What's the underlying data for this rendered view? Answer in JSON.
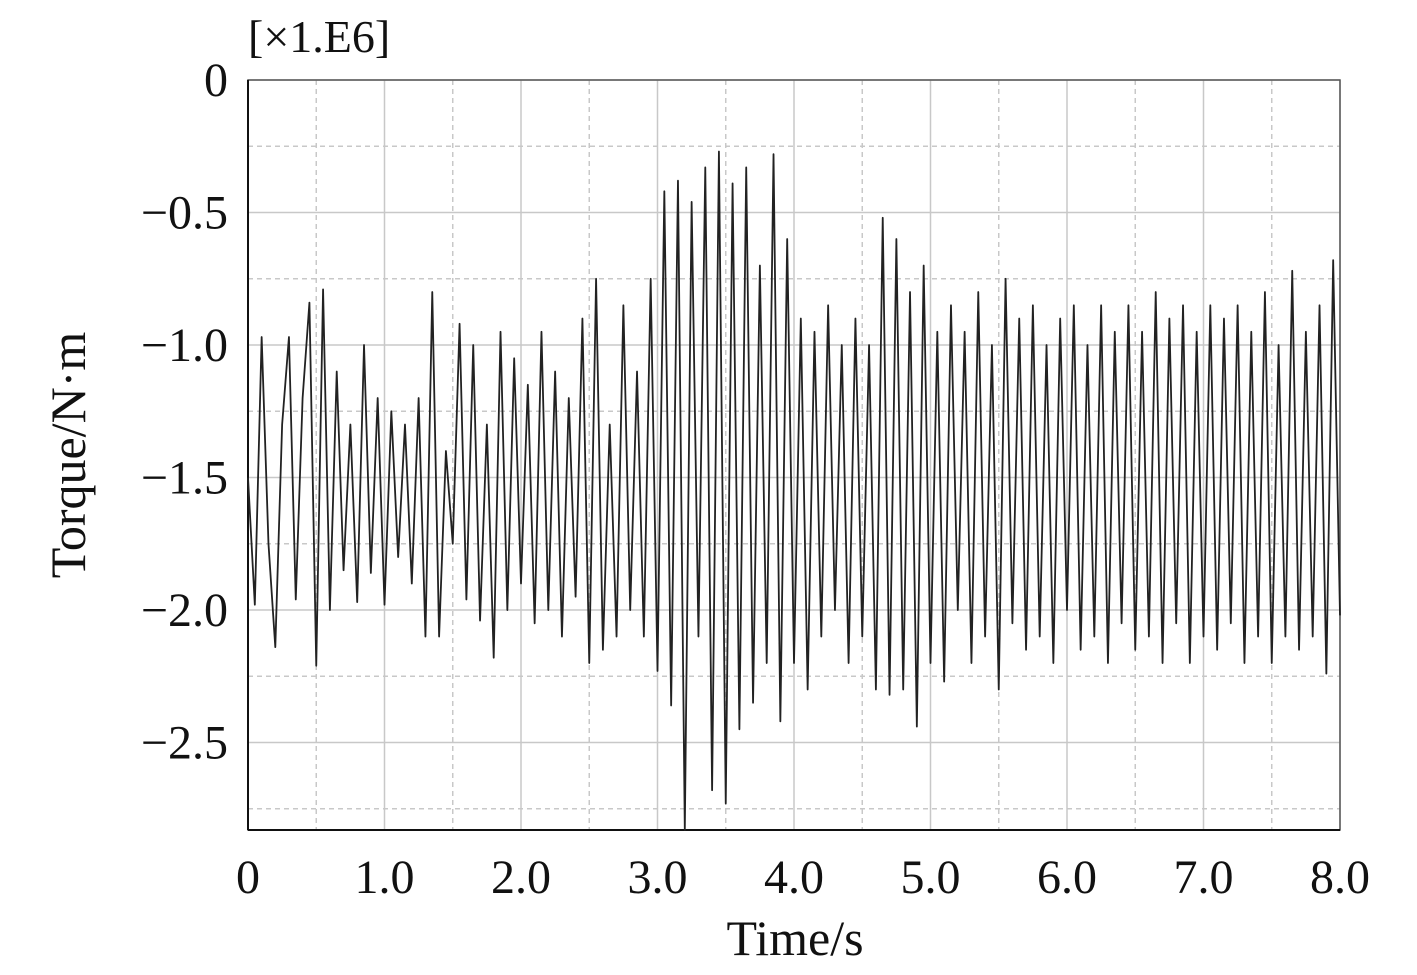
{
  "chart_data": {
    "type": "line",
    "unit_label": "[×1.E6]",
    "ylabel": "Torque/N·m",
    "xlabel": "Time/s",
    "xlim": [
      0,
      8
    ],
    "ylim": [
      -2.83,
      0
    ],
    "xticks": [
      0,
      {
        "value": 1,
        "label": "1.0"
      },
      {
        "value": 2,
        "label": "2.0"
      },
      {
        "value": 3,
        "label": "3.0"
      },
      {
        "value": 4,
        "label": "4.0"
      },
      {
        "value": 5,
        "label": "5.0"
      },
      {
        "value": 6,
        "label": "6.0"
      },
      {
        "value": 7,
        "label": "7.0"
      },
      {
        "value": 8,
        "label": "8.0"
      }
    ],
    "yticks": [
      0,
      {
        "value": -0.5,
        "label": "−0.5"
      },
      {
        "value": -1,
        "label": "−1.0"
      },
      {
        "value": -1.5,
        "label": "−1.5"
      },
      {
        "value": -2,
        "label": "−2.0"
      },
      {
        "value": -2.5,
        "label": "−2.5"
      }
    ],
    "xminorticks": [
      0.5,
      1.5,
      2.5,
      3.5,
      4.5,
      5.5,
      6.5,
      7.5
    ],
    "yminorticks": [
      -0.25,
      -0.75,
      -1.25,
      -1.75,
      -2.25,
      -2.75
    ],
    "grid": true,
    "x": [
      0,
      0.05,
      0.1,
      0.15,
      0.2,
      0.25,
      0.3,
      0.35,
      0.4,
      0.45,
      0.5,
      0.55,
      0.6,
      0.65,
      0.7,
      0.75,
      0.8,
      0.85,
      0.9,
      0.95,
      1,
      1.05,
      1.1,
      1.15,
      1.2,
      1.25,
      1.3,
      1.35,
      1.4,
      1.45,
      1.5,
      1.55,
      1.6,
      1.65,
      1.7,
      1.75,
      1.8,
      1.85,
      1.9,
      1.95,
      2,
      2.05,
      2.1,
      2.15,
      2.2,
      2.25,
      2.3,
      2.35,
      2.4,
      2.45,
      2.5,
      2.55,
      2.6,
      2.65,
      2.7,
      2.75,
      2.8,
      2.85,
      2.9,
      2.95,
      3,
      3.05,
      3.1,
      3.15,
      3.2,
      3.25,
      3.3,
      3.35,
      3.4,
      3.45,
      3.5,
      3.55,
      3.6,
      3.65,
      3.7,
      3.75,
      3.8,
      3.85,
      3.9,
      3.95,
      4,
      4.05,
      4.1,
      4.15,
      4.2,
      4.25,
      4.3,
      4.35,
      4.4,
      4.45,
      4.5,
      4.55,
      4.6,
      4.65,
      4.7,
      4.75,
      4.8,
      4.85,
      4.9,
      4.95,
      5,
      5.05,
      5.1,
      5.15,
      5.2,
      5.25,
      5.3,
      5.35,
      5.4,
      5.45,
      5.5,
      5.55,
      5.6,
      5.65,
      5.7,
      5.75,
      5.8,
      5.85,
      5.9,
      5.95,
      6,
      6.05,
      6.1,
      6.15,
      6.2,
      6.25,
      6.3,
      6.35,
      6.4,
      6.45,
      6.5,
      6.55,
      6.6,
      6.65,
      6.7,
      6.75,
      6.8,
      6.85,
      6.9,
      6.95,
      7,
      7.05,
      7.1,
      7.15,
      7.2,
      7.25,
      7.3,
      7.35,
      7.4,
      7.45,
      7.5,
      7.55,
      7.6,
      7.65,
      7.7,
      7.75,
      7.8,
      7.85,
      7.9,
      7.95,
      8
    ],
    "series": [
      {
        "color": "#222222",
        "values": [
          -1.5,
          -1.98,
          -0.97,
          -1.75,
          -2.14,
          -1.3,
          -0.97,
          -1.96,
          -1.2,
          -0.84,
          -2.21,
          -0.79,
          -2.0,
          -1.1,
          -1.85,
          -1.3,
          -1.97,
          -1.0,
          -1.86,
          -1.2,
          -1.98,
          -1.25,
          -1.8,
          -1.3,
          -1.9,
          -1.2,
          -2.1,
          -0.8,
          -2.1,
          -1.4,
          -1.75,
          -0.92,
          -1.96,
          -1.0,
          -2.04,
          -1.3,
          -2.18,
          -0.95,
          -2.0,
          -1.05,
          -1.9,
          -1.15,
          -2.05,
          -0.95,
          -2.0,
          -1.1,
          -2.1,
          -1.2,
          -1.95,
          -0.9,
          -2.2,
          -0.75,
          -2.15,
          -1.3,
          -2.1,
          -0.85,
          -2.0,
          -1.1,
          -2.1,
          -0.75,
          -2.23,
          -0.42,
          -2.36,
          -0.38,
          -2.83,
          -0.46,
          -2.1,
          -0.33,
          -2.68,
          -0.27,
          -2.73,
          -0.39,
          -2.45,
          -0.33,
          -2.35,
          -0.7,
          -2.2,
          -0.28,
          -2.42,
          -0.6,
          -2.2,
          -0.9,
          -2.3,
          -0.95,
          -2.1,
          -0.85,
          -2.0,
          -1.0,
          -2.2,
          -0.9,
          -2.1,
          -1.0,
          -2.3,
          -0.52,
          -2.32,
          -0.6,
          -2.3,
          -0.8,
          -2.44,
          -0.7,
          -2.2,
          -0.95,
          -2.27,
          -0.85,
          -2.0,
          -0.95,
          -2.2,
          -0.8,
          -2.1,
          -1.0,
          -2.3,
          -0.75,
          -2.05,
          -0.9,
          -2.15,
          -0.85,
          -2.1,
          -1.0,
          -2.2,
          -0.9,
          -2.0,
          -0.85,
          -2.15,
          -1.0,
          -2.1,
          -0.85,
          -2.2,
          -0.95,
          -2.05,
          -0.85,
          -2.15,
          -0.95,
          -2.1,
          -0.8,
          -2.2,
          -0.9,
          -2.05,
          -0.85,
          -2.2,
          -0.95,
          -2.1,
          -0.85,
          -2.15,
          -0.9,
          -2.05,
          -0.85,
          -2.2,
          -0.95,
          -2.1,
          -0.8,
          -2.2,
          -1.0,
          -2.1,
          -0.72,
          -2.15,
          -0.95,
          -2.1,
          -0.85,
          -2.24,
          -0.68,
          -2.02
        ]
      }
    ]
  }
}
